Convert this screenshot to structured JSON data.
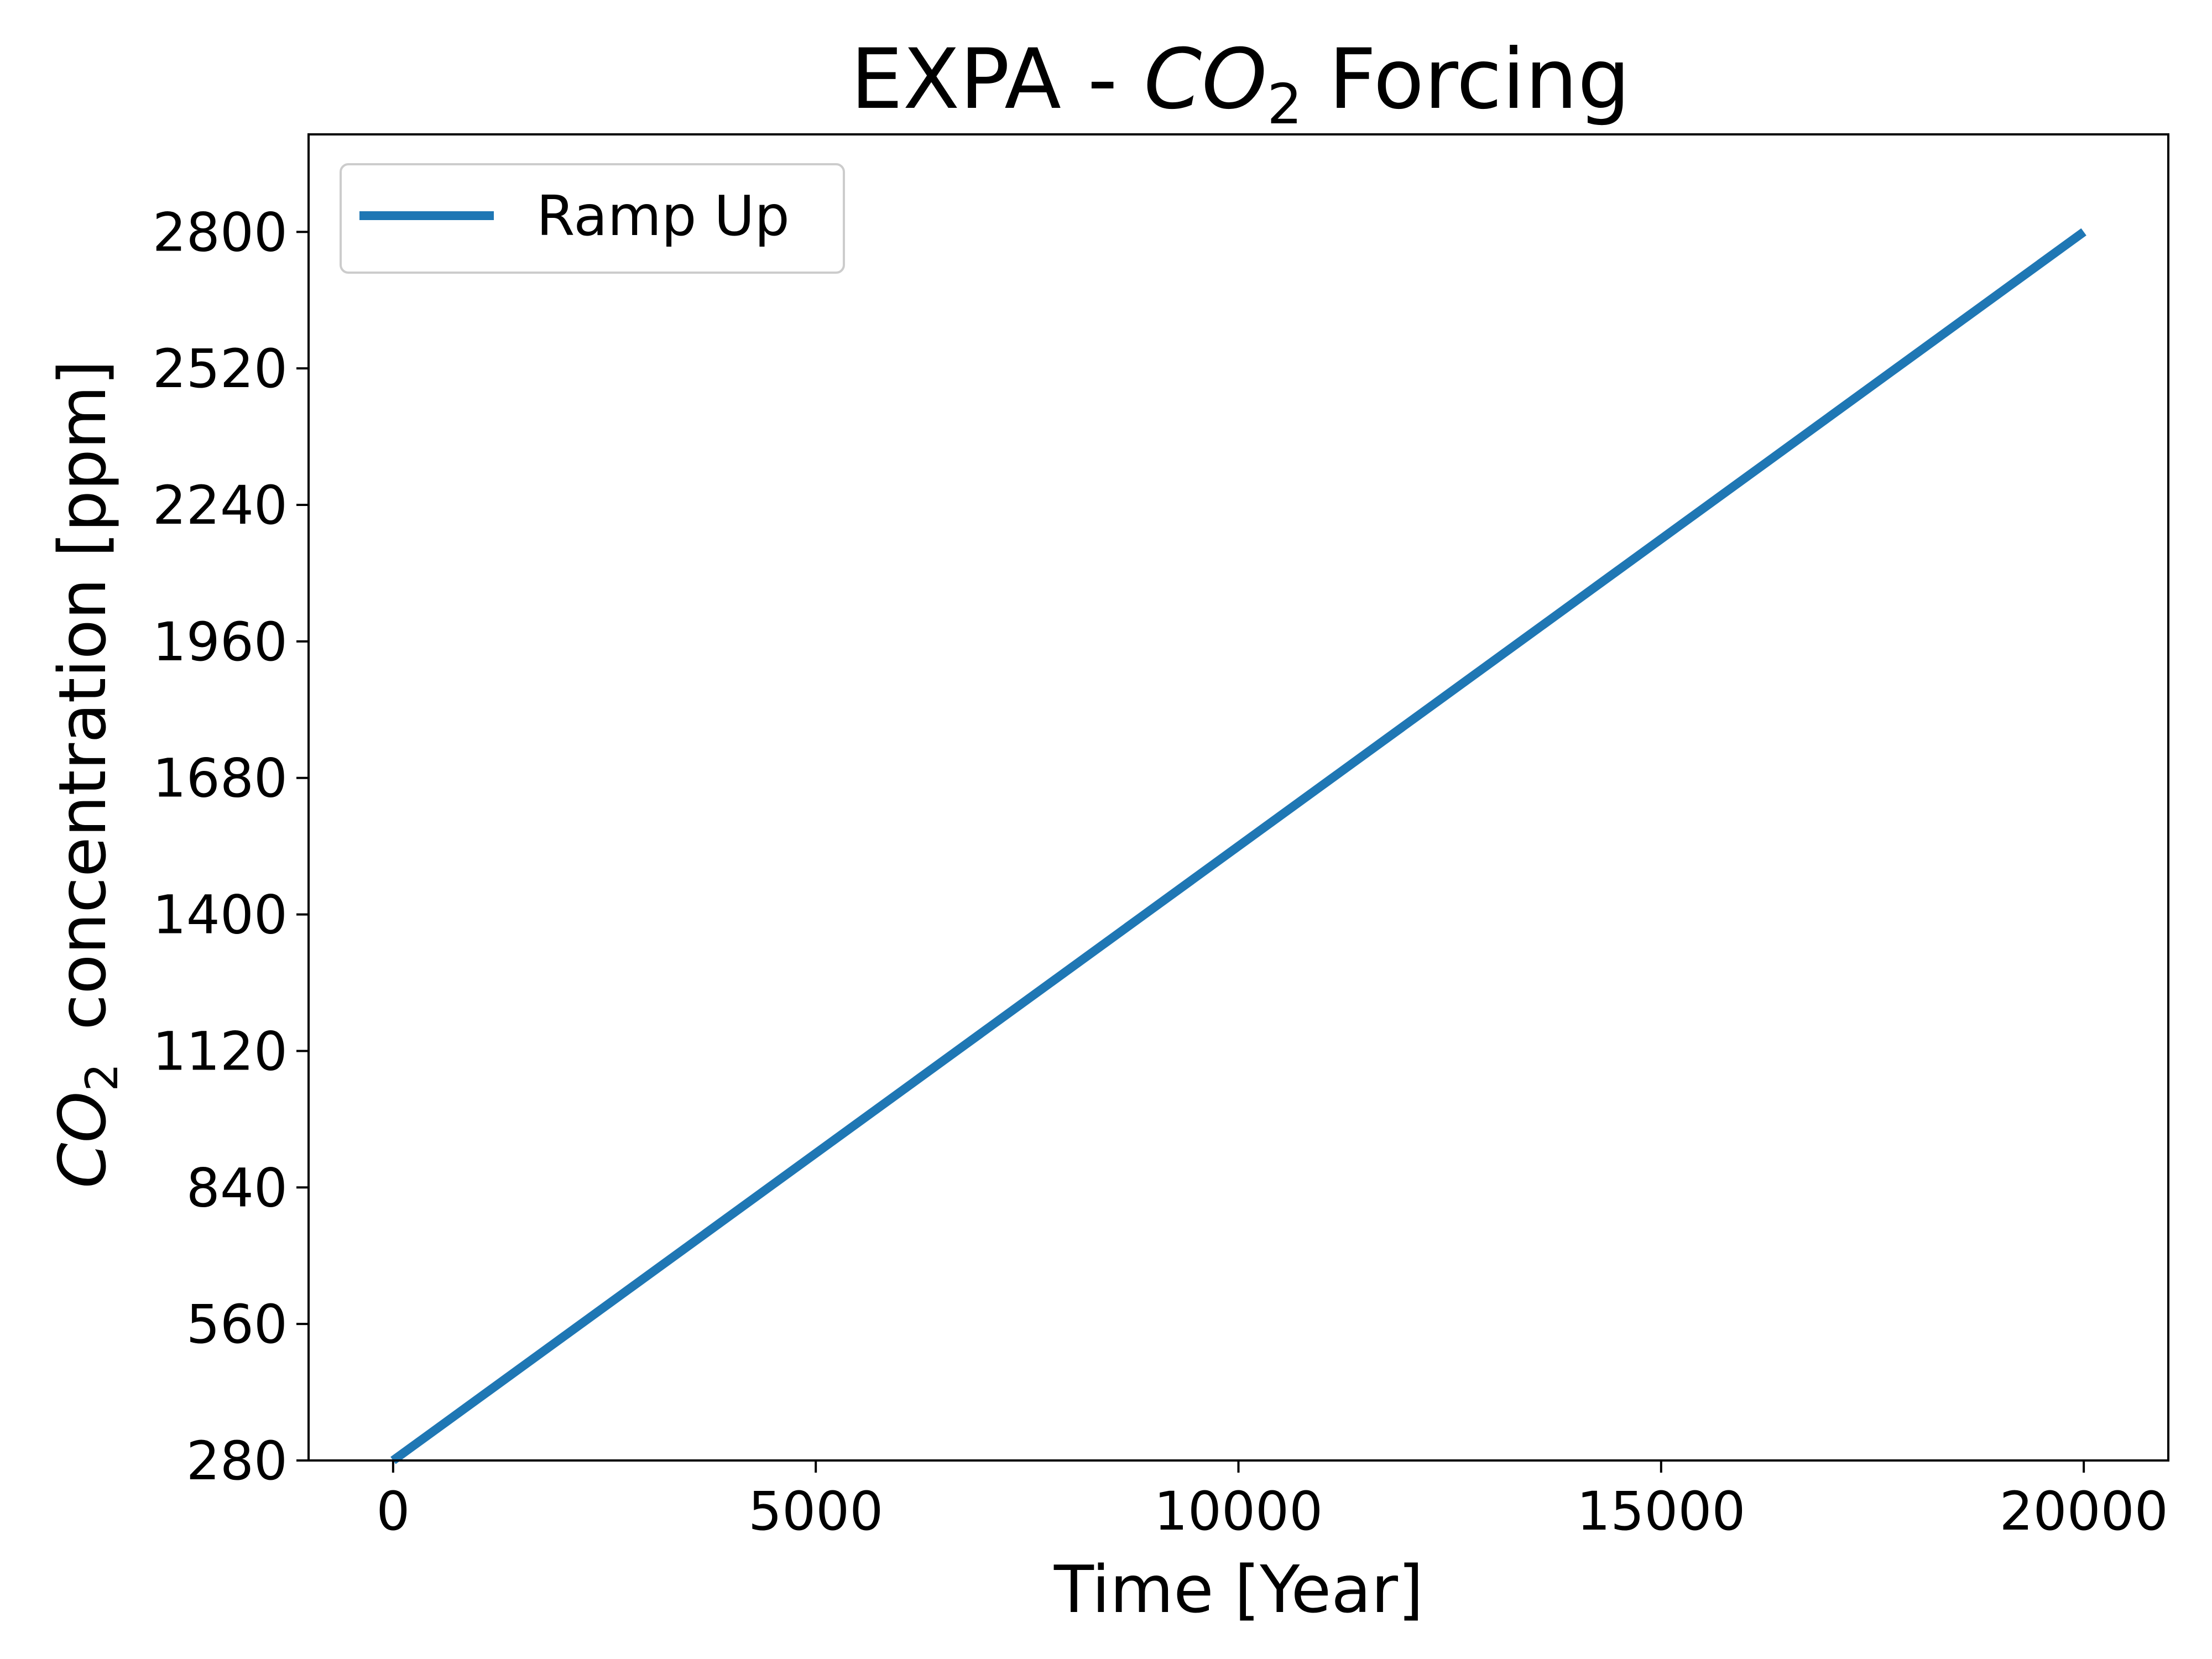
{
  "chart_data": {
    "type": "line",
    "title": {
      "prefix": "EXPA - ",
      "chem": "CO",
      "sub": "2",
      "suffix": " Forcing"
    },
    "xlabel": "Time [Year]",
    "ylabel": {
      "chem": "CO",
      "sub": "2",
      "rest": "concentration [ppm]"
    },
    "xlim": [
      -1000,
      21000
    ],
    "ylim": [
      280,
      3000
    ],
    "xticks": [
      0,
      5000,
      10000,
      15000,
      20000
    ],
    "xtick_labels": [
      "0",
      "5000",
      "10000",
      "15000",
      "20000"
    ],
    "yticks": [
      280,
      560,
      840,
      1120,
      1400,
      1680,
      1960,
      2240,
      2520,
      2800
    ],
    "ytick_labels": [
      "280",
      "560",
      "840",
      "1120",
      "1400",
      "1680",
      "1960",
      "2240",
      "2520",
      "2800"
    ],
    "grid": false,
    "legend_position": "upper-left",
    "series": [
      {
        "name": "Ramp Up",
        "color": "#1f77b4",
        "x": [
          0,
          20000
        ],
        "y": [
          280,
          2800
        ]
      }
    ]
  }
}
